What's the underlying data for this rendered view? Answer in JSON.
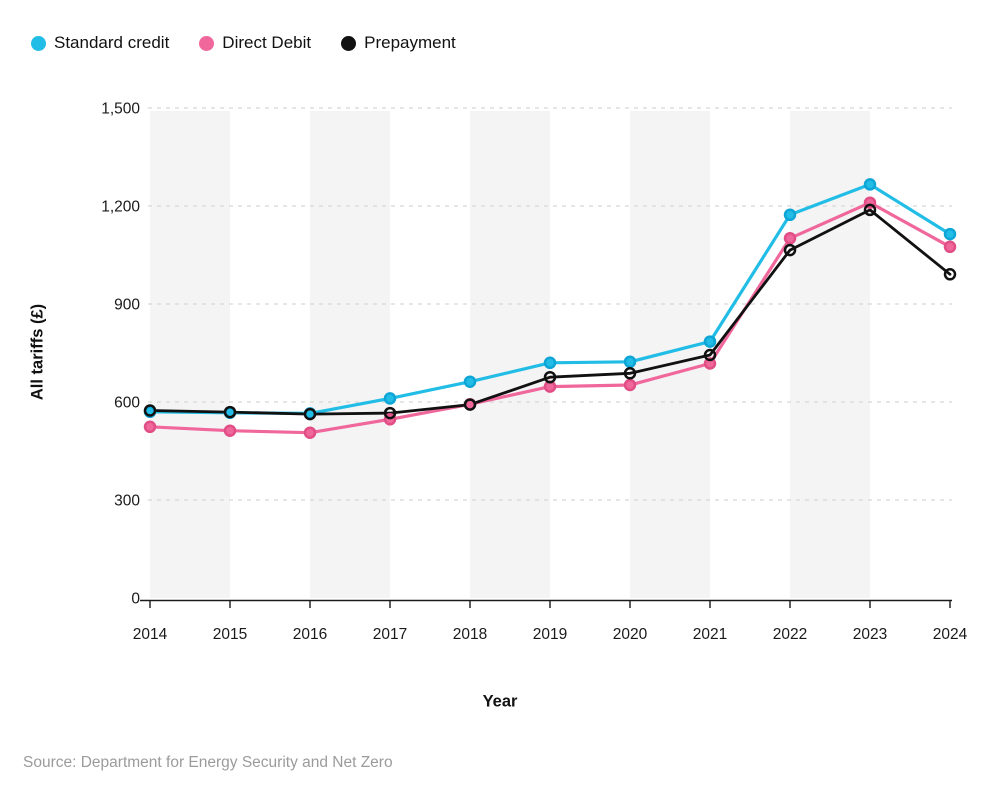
{
  "legend": {
    "items": [
      {
        "label": "Standard credit",
        "color": "#22bde6"
      },
      {
        "label": "Direct Debit",
        "color": "#f0679b"
      },
      {
        "label": "Prepayment",
        "color": "#111111"
      }
    ]
  },
  "chart_data": {
    "type": "line",
    "title": "",
    "xlabel": "Year",
    "ylabel": "All tariffs (£)",
    "x": [
      2014,
      2015,
      2016,
      2017,
      2018,
      2019,
      2020,
      2021,
      2022,
      2023,
      2024
    ],
    "series": [
      {
        "name": "Standard credit",
        "color": "#22bde6",
        "marker": "filled",
        "marker_fill": "#22bde6",
        "marker_stroke": "#0da5d6",
        "values": [
          570,
          567,
          565,
          611,
          662,
          720,
          723,
          785,
          1173,
          1266,
          1114
        ]
      },
      {
        "name": "Direct Debit",
        "color": "#f0679b",
        "marker": "filled",
        "marker_fill": "#f0679b",
        "marker_stroke": "#e04e85",
        "values": [
          524,
          512,
          506,
          547,
          593,
          647,
          652,
          718,
          1101,
          1210,
          1075
        ]
      },
      {
        "name": "Prepayment",
        "color": "#111111",
        "marker": "open",
        "marker_fill": "none",
        "marker_stroke": "#111111",
        "values": [
          574,
          569,
          563,
          566,
          592,
          676,
          688,
          744,
          1065,
          1188,
          991
        ]
      }
    ],
    "ylim": [
      0,
      1500
    ],
    "yticks": [
      0,
      300,
      600,
      900,
      1200,
      1500
    ],
    "ytick_labels": [
      "0",
      "300",
      "600",
      "900",
      "1,200",
      "1,500"
    ],
    "grid": "horizontal dashed",
    "gridline_color": "#d8d8d8",
    "band_color": "#f4f4f4",
    "axis_color": "#1a1a1a",
    "background_bands": "alternating vertical light-gray bands between year ticks, starting 2014-2015",
    "legend_position": "top-left"
  },
  "source": {
    "text": "Source: Department for Energy Security and Net Zero"
  }
}
